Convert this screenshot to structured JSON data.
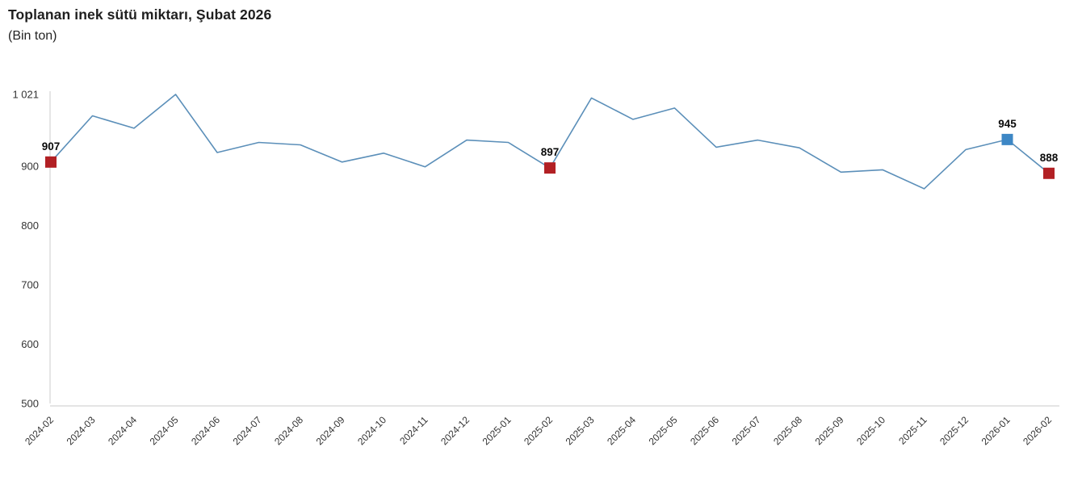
{
  "chart_data": {
    "type": "line",
    "title": "Toplanan inek sütü miktarı, Şubat 2026",
    "subtitle": "(Bin ton)",
    "xlabel": "",
    "ylabel": "",
    "ylim": [
      500,
      1021
    ],
    "grid": false,
    "legend": false,
    "categories": [
      "2024-02",
      "2024-03",
      "2024-04",
      "2024-05",
      "2024-06",
      "2024-07",
      "2024-08",
      "2024-09",
      "2024-10",
      "2024-11",
      "2024-12",
      "2025-01",
      "2025-02",
      "2025-03",
      "2025-04",
      "2025-05",
      "2025-06",
      "2025-07",
      "2025-08",
      "2025-09",
      "2025-10",
      "2025-11",
      "2025-12",
      "2026-01",
      "2026-02"
    ],
    "values": [
      907,
      985,
      964,
      1021,
      923,
      940,
      936,
      907,
      922,
      899,
      944,
      940,
      897,
      1015,
      979,
      998,
      932,
      944,
      931,
      890,
      894,
      862,
      928,
      945,
      888
    ],
    "y_ticks": [
      {
        "value": 1021,
        "label": "1 021"
      },
      {
        "value": 900,
        "label": "900"
      },
      {
        "value": 800,
        "label": "800"
      },
      {
        "value": 700,
        "label": "700"
      },
      {
        "value": 600,
        "label": "600"
      },
      {
        "value": 500,
        "label": "500"
      }
    ],
    "highlighted_points": [
      {
        "index": 0,
        "category": "2024-02",
        "value": 907,
        "label": "907",
        "color": "#b22024"
      },
      {
        "index": 12,
        "category": "2025-02",
        "value": 897,
        "label": "897",
        "color": "#b22024"
      },
      {
        "index": 23,
        "category": "2026-01",
        "value": 945,
        "label": "945",
        "color": "#3d87c5"
      },
      {
        "index": 24,
        "category": "2026-02",
        "value": 888,
        "label": "888",
        "color": "#b22024"
      }
    ],
    "colors": {
      "line": "#5b8fb9",
      "marker_red": "#b22024",
      "marker_blue": "#3d87c5",
      "axis_line": "#dcdcdc",
      "tick_text": "#333333",
      "title_text": "#1f1f1f",
      "point_label_text": "#0a0a0a"
    }
  }
}
